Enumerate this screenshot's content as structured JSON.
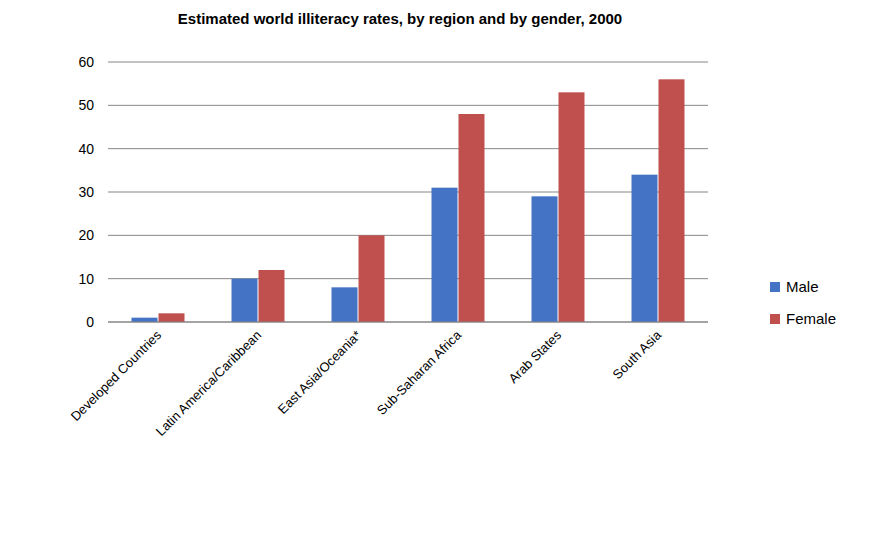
{
  "chart_data": {
    "type": "bar",
    "title": "Estimated world illiteracy rates, by region and by gender, 2000",
    "categories": [
      "Developed Countries",
      "Latin America/Caribbean",
      "East Asia/Oceania*",
      "Sub-Saharan Africa",
      "Arab States",
      "South Asia"
    ],
    "series": [
      {
        "name": "Male",
        "color": "#4472c4",
        "values": [
          1,
          10,
          8,
          31,
          29,
          34
        ]
      },
      {
        "name": "Female",
        "color": "#c0504d",
        "values": [
          2,
          12,
          20,
          48,
          53,
          56
        ]
      }
    ],
    "ylim": [
      0,
      60
    ],
    "yticks": [
      0,
      10,
      20,
      30,
      40,
      50,
      60
    ],
    "grid": true,
    "legend": "right"
  }
}
